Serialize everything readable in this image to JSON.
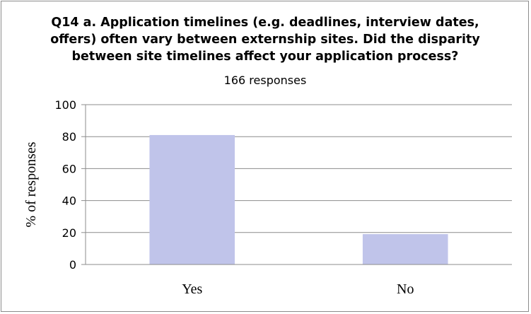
{
  "chart_data": {
    "type": "bar",
    "title": "Q14 a. Application timelines (e.g. deadlines, interview dates,\noffers) often vary between externship sites. Did the disparity\nbetween site timelines affect your application process?",
    "subtitle": "166 responses",
    "xlabel": "",
    "ylabel": "% of responses",
    "categories": [
      "Yes",
      "No"
    ],
    "values": [
      81,
      19
    ],
    "ylim": [
      0,
      100
    ],
    "yticks": [
      0,
      20,
      40,
      60,
      80,
      100
    ],
    "grid": true,
    "legend": "none",
    "colors": {
      "bar": "#c0c4ea",
      "grid": "#8c8c8c",
      "axis": "#8c8c8c"
    }
  }
}
